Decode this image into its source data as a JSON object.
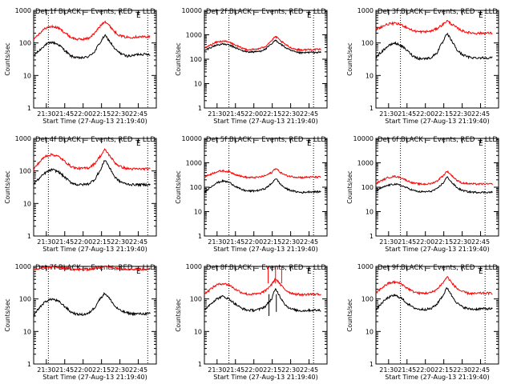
{
  "figure": {
    "xlabel": "Start Time (27-Aug-13 21:19:40)",
    "ylabel": "Counts/sec",
    "marker": "E",
    "xticks": [
      {
        "t": 10.33,
        "label": "21:30"
      },
      {
        "t": 25.33,
        "label": "21:45"
      },
      {
        "t": 40.33,
        "label": "22:00"
      },
      {
        "t": 55.33,
        "label": "22:15"
      },
      {
        "t": 70.33,
        "label": "22:30"
      },
      {
        "t": 85.33,
        "label": "22:45"
      }
    ],
    "yticks": [
      {
        "v": 1,
        "label": "1"
      },
      {
        "v": 10,
        "label": "10"
      },
      {
        "v": 100,
        "label": "100"
      },
      {
        "v": 1000,
        "label": "1000"
      },
      {
        "v": 10000,
        "label": "10000"
      }
    ],
    "colors": {
      "events": "#000000",
      "lld": "#ff0000"
    }
  },
  "chart_data": [
    {
      "type": "line",
      "title": "Det 1f BLACK = Events, RED = LLD",
      "xlabel": "Start Time (27-Aug-13 21:19:40)",
      "ylabel": "Counts/sec",
      "ylim": [
        1,
        1000
      ],
      "log_y": true,
      "xlim": [
        0,
        100
      ],
      "vlines": [
        12,
        93
      ],
      "x": [
        0,
        5,
        10,
        15,
        20,
        25,
        30,
        35,
        40,
        45,
        50,
        55,
        58,
        62,
        66,
        70,
        75,
        80,
        85,
        90,
        95
      ],
      "series": [
        {
          "name": "Events",
          "color": "#000000",
          "values": [
            40,
            60,
            90,
            105,
            90,
            60,
            40,
            35,
            35,
            38,
            55,
            110,
            170,
            110,
            65,
            50,
            40,
            40,
            45,
            45,
            45
          ]
        },
        {
          "name": "LLD",
          "color": "#ff0000",
          "values": [
            130,
            200,
            290,
            320,
            290,
            210,
            150,
            130,
            130,
            140,
            200,
            350,
            470,
            330,
            220,
            170,
            150,
            150,
            155,
            155,
            155
          ]
        }
      ]
    },
    {
      "type": "line",
      "title": "Det 2f BLACK = Events, RED = LLD",
      "xlabel": "Start Time (27-Aug-13 21:19:40)",
      "ylabel": "Counts/sec",
      "ylim": [
        1,
        10000
      ],
      "log_y": true,
      "xlim": [
        0,
        100
      ],
      "vlines": [
        20,
        89
      ],
      "x": [
        0,
        5,
        10,
        15,
        20,
        25,
        30,
        35,
        40,
        45,
        50,
        55,
        58,
        62,
        66,
        70,
        75,
        80,
        85,
        90,
        95
      ],
      "series": [
        {
          "name": "Events",
          "color": "#000000",
          "values": [
            220,
            300,
            380,
            420,
            380,
            300,
            230,
            200,
            200,
            210,
            260,
            420,
            600,
            420,
            300,
            230,
            190,
            180,
            190,
            190,
            190
          ]
        },
        {
          "name": "LLD",
          "color": "#ff0000",
          "values": [
            280,
            380,
            500,
            560,
            500,
            380,
            290,
            250,
            250,
            270,
            340,
            580,
            850,
            560,
            400,
            300,
            250,
            240,
            250,
            250,
            250
          ]
        }
      ]
    },
    {
      "type": "line",
      "title": "Det 3f BLACK = Events, RED = LLD",
      "xlabel": "Start Time (27-Aug-13 21:19:40)",
      "ylabel": "Counts/sec",
      "ylim": [
        1,
        1000
      ],
      "log_y": true,
      "xlim": [
        0,
        100
      ],
      "vlines": [
        20,
        89
      ],
      "x": [
        0,
        5,
        10,
        15,
        20,
        25,
        30,
        35,
        40,
        45,
        50,
        55,
        58,
        62,
        66,
        70,
        75,
        80,
        85,
        90,
        95
      ],
      "series": [
        {
          "name": "Events",
          "color": "#000000",
          "values": [
            35,
            55,
            80,
            100,
            85,
            60,
            40,
            33,
            33,
            35,
            50,
            110,
            190,
            110,
            60,
            45,
            37,
            35,
            35,
            35,
            35
          ]
        },
        {
          "name": "LLD",
          "color": "#ff0000",
          "values": [
            260,
            320,
            380,
            400,
            370,
            300,
            240,
            220,
            220,
            230,
            280,
            380,
            480,
            370,
            290,
            240,
            210,
            200,
            200,
            200,
            200
          ]
        }
      ]
    },
    {
      "type": "line",
      "title": "Det 4f BLACK = Events, RED = LLD",
      "xlabel": "Start Time (27-Aug-13 21:19:40)",
      "ylabel": "Counts/sec",
      "ylim": [
        1,
        1000
      ],
      "log_y": true,
      "xlim": [
        0,
        100
      ],
      "vlines": [
        12,
        93
      ],
      "x": [
        0,
        5,
        10,
        15,
        20,
        25,
        30,
        35,
        40,
        45,
        50,
        55,
        58,
        62,
        66,
        70,
        75,
        80,
        85,
        90,
        95
      ],
      "series": [
        {
          "name": "Events",
          "color": "#000000",
          "values": [
            40,
            60,
            90,
            110,
            95,
            65,
            45,
            38,
            38,
            40,
            55,
            110,
            220,
            120,
            65,
            48,
            40,
            38,
            38,
            38,
            38
          ]
        },
        {
          "name": "LLD",
          "color": "#ff0000",
          "values": [
            110,
            190,
            290,
            320,
            280,
            200,
            140,
            120,
            120,
            125,
            170,
            300,
            450,
            290,
            180,
            140,
            120,
            115,
            115,
            115,
            115
          ]
        }
      ]
    },
    {
      "type": "line",
      "title": "Det 5f BLACK = Events, RED = LLD",
      "xlabel": "Start Time (27-Aug-13 21:19:40)",
      "ylabel": "Counts/sec",
      "ylim": [
        1,
        10000
      ],
      "log_y": true,
      "xlim": [
        0,
        100
      ],
      "vlines": [
        20,
        89
      ],
      "x": [
        0,
        5,
        10,
        15,
        20,
        25,
        30,
        35,
        40,
        45,
        50,
        55,
        58,
        62,
        66,
        70,
        75,
        80,
        85,
        90,
        95
      ],
      "series": [
        {
          "name": "Events",
          "color": "#000000",
          "values": [
            60,
            100,
            150,
            180,
            160,
            110,
            80,
            70,
            70,
            75,
            90,
            140,
            230,
            130,
            90,
            75,
            65,
            60,
            65,
            65,
            65
          ]
        },
        {
          "name": "LLD",
          "color": "#ff0000",
          "values": [
            260,
            340,
            430,
            470,
            430,
            340,
            280,
            250,
            250,
            260,
            300,
            400,
            600,
            400,
            310,
            280,
            260,
            250,
            260,
            260,
            260
          ]
        }
      ]
    },
    {
      "type": "line",
      "title": "Det 6f BLACK = Events, RED = LLD",
      "xlabel": "Start Time (27-Aug-13 21:19:40)",
      "ylabel": "Counts/sec",
      "ylim": [
        1,
        10000
      ],
      "log_y": true,
      "xlim": [
        0,
        100
      ],
      "vlines": [
        20,
        89
      ],
      "x": [
        0,
        5,
        10,
        15,
        20,
        25,
        30,
        35,
        40,
        45,
        50,
        55,
        58,
        62,
        66,
        70,
        75,
        80,
        85,
        90,
        95
      ],
      "series": [
        {
          "name": "Events",
          "color": "#000000",
          "values": [
            70,
            95,
            120,
            135,
            120,
            95,
            75,
            65,
            65,
            68,
            85,
            150,
            260,
            150,
            95,
            75,
            65,
            62,
            62,
            62,
            62
          ]
        },
        {
          "name": "LLD",
          "color": "#ff0000",
          "values": [
            140,
            190,
            250,
            280,
            250,
            190,
            150,
            135,
            135,
            140,
            180,
            300,
            450,
            290,
            190,
            150,
            140,
            135,
            135,
            135,
            135
          ]
        }
      ]
    },
    {
      "type": "line",
      "title": "Det 7f BLACK = Events, RED = LLD",
      "xlabel": "Start Time (27-Aug-13 21:19:40)",
      "ylabel": "Counts/sec",
      "ylim": [
        1,
        1000
      ],
      "log_y": true,
      "xlim": [
        0,
        100
      ],
      "vlines": [
        12,
        93
      ],
      "x": [
        0,
        5,
        10,
        15,
        20,
        25,
        30,
        35,
        40,
        45,
        50,
        55,
        58,
        62,
        66,
        70,
        75,
        80,
        85,
        90,
        95
      ],
      "series": [
        {
          "name": "Events",
          "color": "#000000",
          "values": [
            30,
            55,
            85,
            100,
            85,
            60,
            40,
            34,
            33,
            36,
            55,
            110,
            150,
            100,
            60,
            45,
            38,
            35,
            35,
            35,
            35
          ]
        },
        {
          "name": "LLD",
          "color": "#ff0000",
          "values": [
            780,
            860,
            930,
            960,
            930,
            880,
            830,
            800,
            800,
            820,
            880,
            960,
            1000,
            950,
            900,
            860,
            830,
            820,
            820,
            820,
            820
          ]
        }
      ]
    },
    {
      "type": "line",
      "title": "Det 8f BLACK = Events, RED = LLD",
      "xlabel": "Start Time (27-Aug-13 21:19:40)",
      "ylabel": "Counts/sec",
      "ylim": [
        1,
        1000
      ],
      "log_y": true,
      "xlim": [
        0,
        100
      ],
      "vlines": [
        20,
        89
      ],
      "x": [
        0,
        5,
        10,
        15,
        20,
        25,
        30,
        35,
        40,
        45,
        50,
        55,
        58,
        62,
        66,
        70,
        75,
        80,
        85,
        90,
        95
      ],
      "series": [
        {
          "name": "Events",
          "color": "#000000",
          "values": [
            45,
            70,
            100,
            120,
            100,
            70,
            52,
            45,
            45,
            48,
            60,
            100,
            200,
            110,
            65,
            50,
            45,
            43,
            45,
            45,
            45
          ]
        },
        {
          "name": "LLD",
          "color": "#ff0000",
          "values": [
            140,
            200,
            270,
            300,
            270,
            200,
            160,
            140,
            140,
            145,
            180,
            280,
            420,
            270,
            190,
            155,
            140,
            135,
            140,
            140,
            140
          ]
        }
      ]
    },
    {
      "type": "line",
      "title": "Det 9f BLACK = Events, RED = LLD",
      "xlabel": "Start Time (27-Aug-13 21:19:40)",
      "ylabel": "Counts/sec",
      "ylim": [
        1,
        1000
      ],
      "log_y": true,
      "xlim": [
        0,
        100
      ],
      "vlines": [
        20,
        89
      ],
      "x": [
        0,
        5,
        10,
        15,
        20,
        25,
        30,
        35,
        40,
        45,
        50,
        55,
        58,
        62,
        66,
        70,
        75,
        80,
        85,
        90,
        95
      ],
      "series": [
        {
          "name": "Events",
          "color": "#000000",
          "values": [
            45,
            75,
            110,
            130,
            110,
            75,
            55,
            48,
            48,
            50,
            70,
            130,
            220,
            120,
            75,
            58,
            50,
            48,
            50,
            50,
            50
          ]
        },
        {
          "name": "LLD",
          "color": "#ff0000",
          "values": [
            150,
            220,
            300,
            330,
            300,
            220,
            170,
            150,
            150,
            155,
            200,
            320,
            480,
            300,
            210,
            170,
            150,
            145,
            150,
            150,
            150
          ]
        }
      ]
    }
  ]
}
